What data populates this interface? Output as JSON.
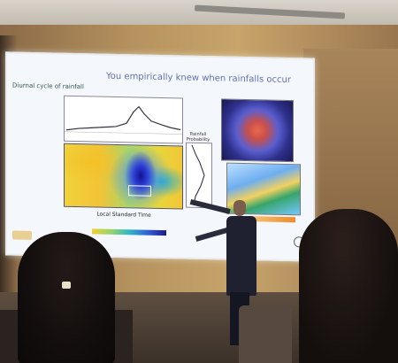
{
  "scene": {
    "description": "",
    "colors": {
      "wall": "#b7945f",
      "screen": "#f4f7fb",
      "heatmap_blue": "#2a3bd6",
      "heatmap_yellow": "#f2c336"
    }
  },
  "slide": {
    "title": "You empirically knew when rainfalls occur",
    "subtitle": "Diurnal cycle of rainfall",
    "x_label": "Local Standard Time",
    "profile_label": "Rainfall Probability"
  }
}
